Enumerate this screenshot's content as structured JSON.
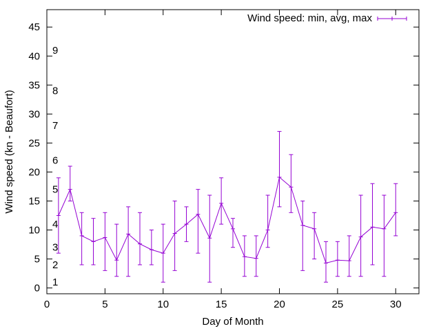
{
  "chart_data": {
    "type": "line",
    "title": "",
    "xlabel": "Day of Month",
    "ylabel": "Wind speed (kn - Beaufort)",
    "xlim": [
      0,
      32
    ],
    "ylim": [
      -1,
      48
    ],
    "xticks": [
      0,
      5,
      10,
      15,
      20,
      25,
      30
    ],
    "yticks": [
      0,
      5,
      10,
      15,
      20,
      25,
      30,
      35,
      40,
      45
    ],
    "grid": false,
    "legend_position": "top-right",
    "series": [
      {
        "name": "Wind speed: min, avg, max",
        "color": "#9400d3",
        "x": [
          1,
          2,
          3,
          4,
          5,
          6,
          7,
          8,
          9,
          10,
          11,
          12,
          13,
          14,
          15,
          16,
          17,
          18,
          19,
          20,
          21,
          22,
          23,
          24,
          25,
          26,
          27,
          28,
          29,
          30
        ],
        "avg": [
          12.5,
          17,
          9,
          8,
          8.7,
          4.8,
          9.3,
          7.6,
          6.6,
          6,
          9.4,
          11,
          12.7,
          8.6,
          14.6,
          10.2,
          5.4,
          5.1,
          10,
          19.1,
          17.4,
          10.8,
          10.2,
          4.3,
          4.8,
          4.7,
          8.8,
          10.5,
          10.2,
          13
        ],
        "min": [
          6,
          15,
          4,
          4,
          3,
          2,
          2,
          4,
          4,
          1,
          3,
          8,
          6,
          1,
          11,
          7,
          2,
          2,
          7,
          14,
          13,
          3,
          5,
          1,
          2,
          2,
          2,
          4,
          2,
          9
        ],
        "max": [
          19,
          21,
          13,
          12,
          13,
          11,
          14,
          13,
          10,
          11,
          15,
          14,
          17,
          16,
          19,
          12,
          9,
          9,
          16,
          27,
          23,
          15,
          13,
          8,
          8,
          9,
          16,
          18,
          16,
          18
        ]
      }
    ],
    "annotations": [
      {
        "text": "1",
        "y": 1
      },
      {
        "text": "2",
        "y": 4
      },
      {
        "text": "3",
        "y": 7
      },
      {
        "text": "4",
        "y": 11
      },
      {
        "text": "5",
        "y": 17
      },
      {
        "text": "6",
        "y": 22
      },
      {
        "text": "7",
        "y": 28
      },
      {
        "text": "8",
        "y": 34
      },
      {
        "text": "9",
        "y": 41
      }
    ]
  }
}
